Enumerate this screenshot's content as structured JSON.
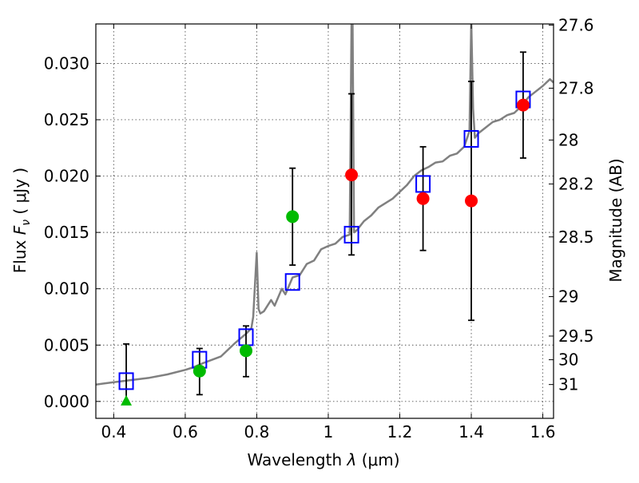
{
  "chart_data": {
    "type": "scatter",
    "xlabel": "Wavelength",
    "xlabel_symbol": "λ",
    "xlabel_unit": "(μm)",
    "ylabel": "Flux",
    "ylabel_symbol": "F",
    "ylabel_symbol_sub": "ν",
    "ylabel_unit": "( μJy )",
    "y2label": "Magnitude (AB)",
    "xlim": [
      0.35,
      1.63
    ],
    "ylim": [
      -0.0015,
      0.0335
    ],
    "grid": true,
    "x_ticks": [
      0.4,
      0.6,
      0.8,
      1.0,
      1.2,
      1.4,
      1.6
    ],
    "x_tick_labels": [
      "0.4",
      "0.6",
      "0.8",
      "1",
      "1.2",
      "1.4",
      "1.6"
    ],
    "y_ticks": [
      0.0,
      0.005,
      0.01,
      0.015,
      0.02,
      0.025,
      0.03
    ],
    "y_tick_labels": [
      "0.000",
      "0.005",
      "0.010",
      "0.015",
      "0.020",
      "0.025",
      "0.030"
    ],
    "mag_ticks": [
      {
        "label": "27.6",
        "flux": 0.0334
      },
      {
        "label": "27.8",
        "flux": 0.0278
      },
      {
        "label": "28",
        "flux": 0.0232
      },
      {
        "label": "28.2",
        "flux": 0.0193
      },
      {
        "label": "28.5",
        "flux": 0.0146
      },
      {
        "label": "29",
        "flux": 0.0093
      },
      {
        "label": "29.5",
        "flux": 0.0058
      },
      {
        "label": "30",
        "flux": 0.0037
      },
      {
        "label": "31",
        "flux": 0.0015
      }
    ],
    "series": [
      {
        "kind": "template_spectrum",
        "color": "#808080",
        "x": [
          0.35,
          0.4,
          0.45,
          0.5,
          0.55,
          0.6,
          0.62,
          0.65,
          0.7,
          0.74,
          0.77,
          0.785,
          0.79,
          0.8,
          0.805,
          0.81,
          0.82,
          0.84,
          0.85,
          0.87,
          0.88,
          0.9,
          0.92,
          0.94,
          0.96,
          0.98,
          1.0,
          1.02,
          1.04,
          1.06,
          1.065,
          1.068,
          1.072,
          1.08,
          1.1,
          1.12,
          1.14,
          1.16,
          1.18,
          1.2,
          1.22,
          1.24,
          1.26,
          1.28,
          1.3,
          1.32,
          1.34,
          1.36,
          1.38,
          1.395,
          1.4,
          1.405,
          1.41,
          1.42,
          1.44,
          1.46,
          1.48,
          1.5,
          1.52,
          1.54,
          1.56,
          1.58,
          1.6,
          1.62,
          1.63
        ],
        "y": [
          0.0015,
          0.0017,
          0.0019,
          0.0021,
          0.0024,
          0.0028,
          0.003,
          0.0034,
          0.004,
          0.0052,
          0.006,
          0.0065,
          0.0075,
          0.0132,
          0.0082,
          0.0078,
          0.008,
          0.009,
          0.0085,
          0.01,
          0.0095,
          0.011,
          0.0112,
          0.0122,
          0.0125,
          0.0135,
          0.0138,
          0.014,
          0.0146,
          0.0148,
          0.0338,
          0.0338,
          0.015,
          0.0152,
          0.016,
          0.0165,
          0.0172,
          0.0176,
          0.018,
          0.0186,
          0.0192,
          0.02,
          0.0205,
          0.0208,
          0.0212,
          0.0213,
          0.0218,
          0.022,
          0.0226,
          0.024,
          0.0338,
          0.026,
          0.0234,
          0.0238,
          0.0243,
          0.0248,
          0.025,
          0.0254,
          0.0256,
          0.0262,
          0.027,
          0.0275,
          0.028,
          0.0286,
          0.0283
        ]
      },
      {
        "kind": "model_bandpass_squares",
        "color": "#0000ff",
        "x": [
          0.435,
          0.64,
          0.77,
          0.9,
          1.065,
          1.265,
          1.4,
          1.545
        ],
        "y": [
          0.0018,
          0.0037,
          0.0057,
          0.0106,
          0.0148,
          0.0193,
          0.0233,
          0.0268
        ]
      },
      {
        "kind": "observed_error_bars",
        "color": "#000000",
        "x": [
          0.435,
          0.64,
          0.77,
          0.9,
          1.065,
          1.265,
          1.4,
          1.545
        ],
        "y_low": [
          0.0,
          0.0006,
          0.0022,
          0.0121,
          0.013,
          0.0134,
          0.0072,
          0.0216
        ],
        "y_high": [
          0.0051,
          0.0047,
          0.0067,
          0.0207,
          0.0273,
          0.0226,
          0.0284,
          0.031
        ]
      },
      {
        "kind": "green_points",
        "color": "#00bb00",
        "x": [
          0.64,
          0.77,
          0.9
        ],
        "y": [
          0.0027,
          0.0045,
          0.0164
        ]
      },
      {
        "kind": "red_points",
        "color": "#ff0000",
        "x": [
          1.065,
          1.265,
          1.4,
          1.545
        ],
        "y": [
          0.0201,
          0.018,
          0.0178,
          0.0263
        ]
      },
      {
        "kind": "upper_limit_triangle",
        "color": "#00bb00",
        "x": [
          0.435
        ],
        "y": [
          0.0
        ]
      }
    ]
  }
}
